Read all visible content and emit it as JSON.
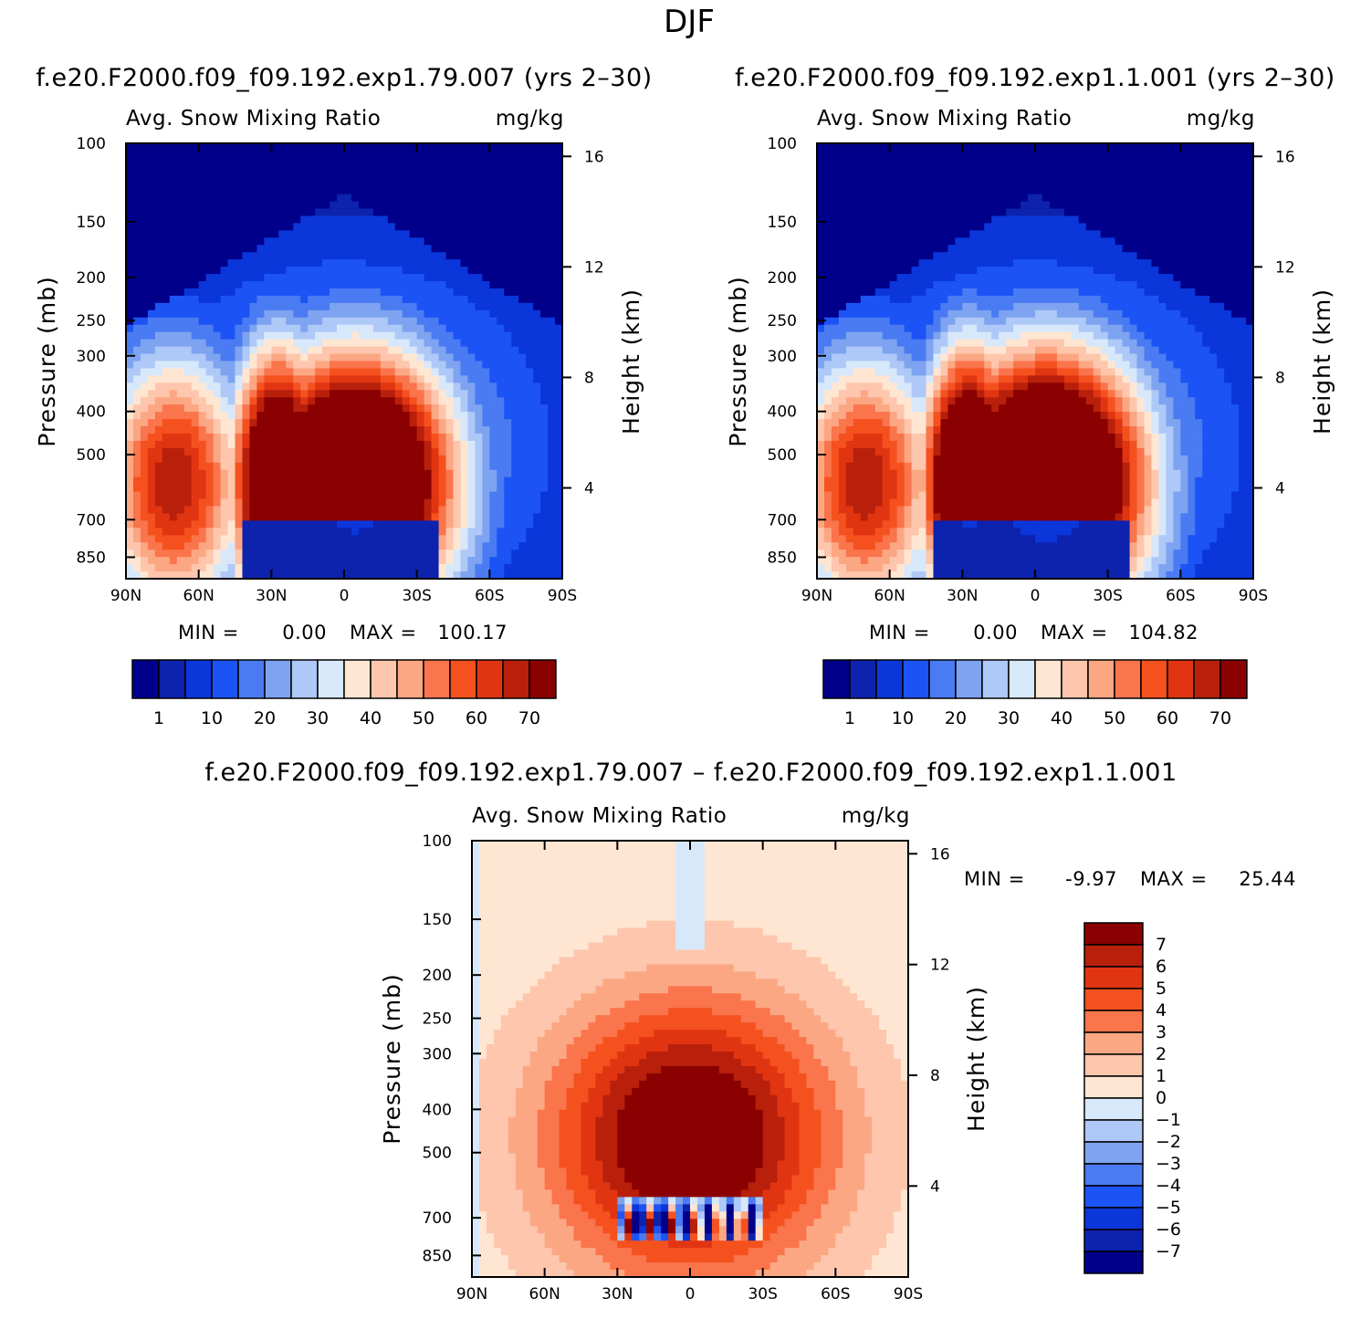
{
  "figure": {
    "title": "DJF"
  },
  "colors": {
    "levels15": [
      "#00008b",
      "#0d22ad",
      "#0b36da",
      "#1c53f5",
      "#4a7bf2",
      "#7ea3f0",
      "#aec8f7",
      "#d8e8fb",
      "#ffe6d2",
      "#fdc6ad",
      "#fca783",
      "#fa744c",
      "#f5511f",
      "#e13512",
      "#b8200c",
      "#8b0000"
    ],
    "diff": [
      "#00008b",
      "#0d22ad",
      "#0b36da",
      "#1c53f5",
      "#4a7bf2",
      "#7ea3f0",
      "#aec8f7",
      "#d8e8fb",
      "#ffe6d2",
      "#fdc6ad",
      "#fca783",
      "#fa744c",
      "#f5511f",
      "#e13512",
      "#b8200c",
      "#8b0000"
    ]
  },
  "chart_data": [
    {
      "type": "heatmap",
      "title": "f.e20.F2000.f09_f09.192.exp1.79.007 (yrs 2–30)",
      "subtitle_left": "Avg. Snow Mixing Ratio",
      "subtitle_right": "mg/kg",
      "ylabel": "Pressure (mb)",
      "ylabel_right": "Height (km)",
      "x_ticks": [
        "90N",
        "60N",
        "30N",
        "0",
        "30S",
        "60S",
        "90S"
      ],
      "y_ticks": [
        "100",
        "150",
        "200",
        "250",
        "300",
        "400",
        "500",
        "700",
        "850"
      ],
      "y_right_ticks": [
        "16",
        "12",
        "8",
        "4"
      ],
      "stats": {
        "min_label": "MIN =",
        "min": "0.00",
        "max_label": "MAX =",
        "max": "100.17"
      },
      "colorbar_labels": [
        "1",
        "10",
        "20",
        "30",
        "40",
        "50",
        "60",
        "70"
      ],
      "peak": 100.17
    },
    {
      "type": "heatmap",
      "title": "f.e20.F2000.f09_f09.192.exp1.1.001 (yrs 2–30)",
      "subtitle_left": "Avg. Snow Mixing Ratio",
      "subtitle_right": "mg/kg",
      "ylabel": "Pressure (mb)",
      "ylabel_right": "Height (km)",
      "x_ticks": [
        "90N",
        "60N",
        "30N",
        "0",
        "30S",
        "60S",
        "90S"
      ],
      "y_ticks": [
        "100",
        "150",
        "200",
        "250",
        "300",
        "400",
        "500",
        "700",
        "850"
      ],
      "y_right_ticks": [
        "16",
        "12",
        "8",
        "4"
      ],
      "stats": {
        "min_label": "MIN =",
        "min": "0.00",
        "max_label": "MAX =",
        "max": "104.82"
      },
      "colorbar_labels": [
        "1",
        "10",
        "20",
        "30",
        "40",
        "50",
        "60",
        "70"
      ],
      "peak": 104.82
    },
    {
      "type": "heatmap",
      "title": "f.e20.F2000.f09_f09.192.exp1.79.007 – f.e20.F2000.f09_f09.192.exp1.1.001",
      "subtitle_left": "Avg. Snow Mixing Ratio",
      "subtitle_right": "mg/kg",
      "ylabel": "Pressure (mb)",
      "ylabel_right": "Height (km)",
      "x_ticks": [
        "90N",
        "60N",
        "30N",
        "0",
        "30S",
        "60S",
        "90S"
      ],
      "y_ticks": [
        "100",
        "150",
        "200",
        "250",
        "300",
        "400",
        "500",
        "700",
        "850"
      ],
      "y_right_ticks": [
        "16",
        "12",
        "8",
        "4"
      ],
      "stats": {
        "min_label": "MIN =",
        "min": "-9.97",
        "max_label": "MAX =",
        "max": "25.44"
      },
      "colorbar_labels": [
        "7",
        "6",
        "5",
        "4",
        "3",
        "2",
        "1",
        "0",
        "−1",
        "−2",
        "−3",
        "−4",
        "−5",
        "−6",
        "−7"
      ]
    }
  ]
}
